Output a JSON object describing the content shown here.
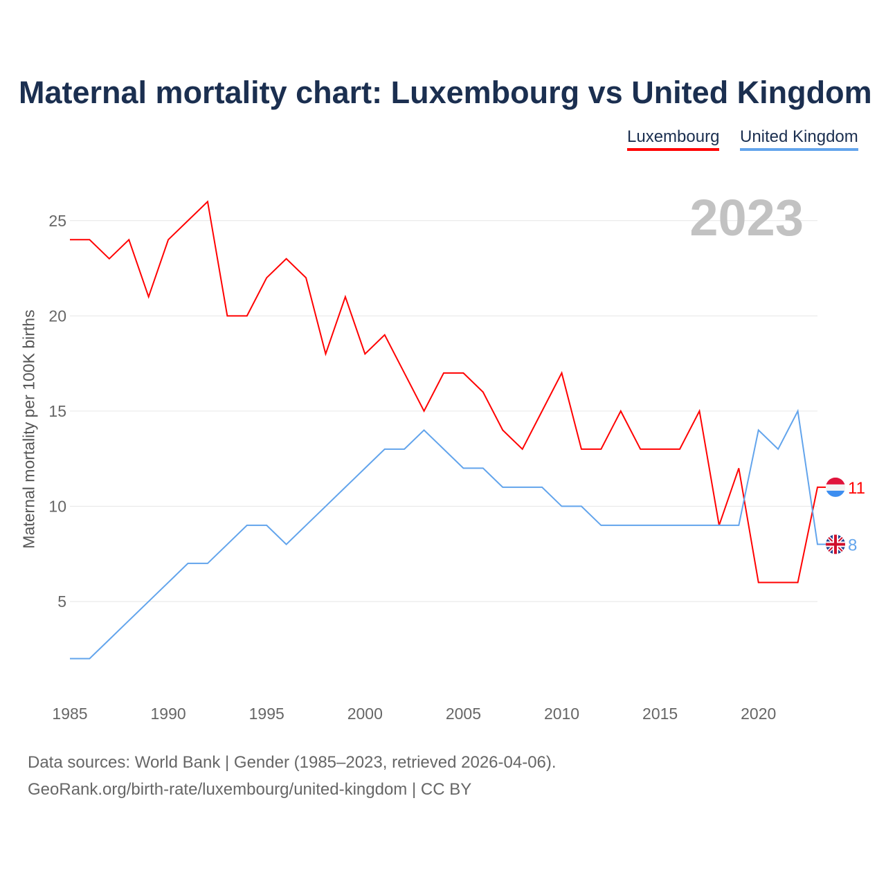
{
  "title": "Maternal mortality chart: Luxembourg vs United Kingdom",
  "year_label": "2023",
  "footer": {
    "line1": "Data sources: World Bank | Gender (1985–2023, retrieved 2026-04-06).",
    "line2": "GeoRank.org/birth-rate/luxembourg/united-kingdom | CC BY"
  },
  "chart_data": {
    "type": "line",
    "title": "Maternal mortality chart: Luxembourg vs United Kingdom",
    "xlabel": "",
    "ylabel": "Maternal mortality per 100K births",
    "xlim": [
      1985,
      2023
    ],
    "ylim": [
      0,
      27.5
    ],
    "xticks": [
      1985,
      1990,
      1995,
      2000,
      2005,
      2010,
      2015,
      2020
    ],
    "yticks": [
      5,
      10,
      15,
      20,
      25
    ],
    "grid": true,
    "legend_placement": "top-right",
    "x": [
      1985,
      1986,
      1987,
      1988,
      1989,
      1990,
      1991,
      1992,
      1993,
      1994,
      1995,
      1996,
      1997,
      1998,
      1999,
      2000,
      2001,
      2002,
      2003,
      2004,
      2005,
      2006,
      2007,
      2008,
      2009,
      2010,
      2011,
      2012,
      2013,
      2014,
      2015,
      2016,
      2017,
      2018,
      2019,
      2020,
      2021,
      2022,
      2023
    ],
    "series": [
      {
        "name": "Luxembourg",
        "color": "#ff0000",
        "end_label": "11",
        "values": [
          24,
          24,
          23,
          24,
          21,
          24,
          25,
          26,
          20,
          20,
          22,
          23,
          22,
          18,
          21,
          18,
          19,
          17,
          15,
          17,
          17,
          16,
          14,
          13,
          15,
          17,
          13,
          13,
          15,
          13,
          13,
          13,
          15,
          9,
          12,
          6,
          6,
          6,
          11
        ]
      },
      {
        "name": "United Kingdom",
        "color": "#62a4ec",
        "end_label": "8",
        "values": [
          2,
          2,
          3,
          4,
          5,
          6,
          7,
          7,
          8,
          9,
          9,
          8,
          9,
          10,
          11,
          12,
          13,
          13,
          14,
          13,
          12,
          12,
          11,
          11,
          11,
          10,
          10,
          9,
          9,
          9,
          9,
          9,
          9,
          9,
          9,
          14,
          13,
          15,
          8
        ]
      }
    ]
  }
}
